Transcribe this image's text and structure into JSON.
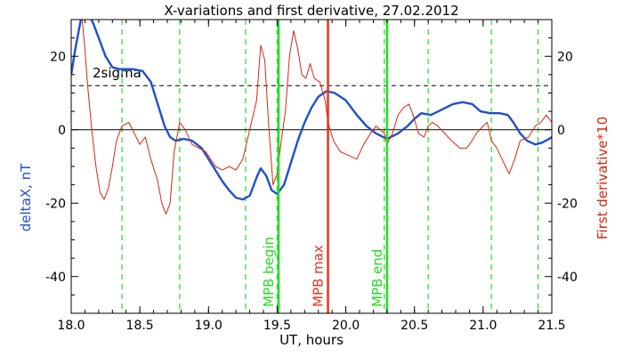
{
  "chart_data": {
    "type": "line",
    "title": "X-variations and first derivative, 27.02.2012",
    "xlabel": "UT, hours",
    "ylabel_left": "deltaX, nT",
    "ylabel_right": "First derivative*10",
    "xlim": [
      18.0,
      21.5
    ],
    "ylim": [
      -50,
      30
    ],
    "x_ticks": [
      "18.0",
      "18.5",
      "19.0",
      "19.5",
      "20.0",
      "20.5",
      "21.0",
      "21.5"
    ],
    "y_ticks": [
      "20",
      "0",
      "-20",
      "-40"
    ],
    "x_tick_values": [
      18.0,
      18.5,
      19.0,
      19.5,
      20.0,
      20.5,
      21.0,
      21.5
    ],
    "y_tick_values": [
      20,
      0,
      -20,
      -40
    ],
    "two_sigma_label": "2sigma",
    "two_sigma_level": 12,
    "zero_level": 0,
    "dashed_green_times": [
      18.37,
      18.79,
      19.27,
      19.5,
      20.28,
      20.6,
      21.06,
      21.4
    ],
    "markers": [
      {
        "label": "MPB begin",
        "x": 19.51,
        "color": "#22dd22"
      },
      {
        "label": "MPB max",
        "x": 19.87,
        "color": "#e8341c"
      },
      {
        "label": "MPB end",
        "x": 20.3,
        "color": "#22dd22"
      }
    ],
    "series": [
      {
        "color": "#1f4fcc",
        "axis": "left",
        "points": [
          [
            18.0,
            15
          ],
          [
            18.03,
            22
          ],
          [
            18.06,
            28
          ],
          [
            18.08,
            32
          ],
          [
            18.12,
            32
          ],
          [
            18.16,
            29
          ],
          [
            18.2,
            25
          ],
          [
            18.25,
            20
          ],
          [
            18.3,
            17
          ],
          [
            18.35,
            16.5
          ],
          [
            18.45,
            16.5
          ],
          [
            18.52,
            16
          ],
          [
            18.58,
            13
          ],
          [
            18.63,
            7
          ],
          [
            18.68,
            1
          ],
          [
            18.72,
            -2
          ],
          [
            18.76,
            -3
          ],
          [
            18.82,
            -2.5
          ],
          [
            18.88,
            -3
          ],
          [
            18.95,
            -5
          ],
          [
            19.0,
            -8
          ],
          [
            19.05,
            -11
          ],
          [
            19.1,
            -14
          ],
          [
            19.15,
            -16.5
          ],
          [
            19.2,
            -18.5
          ],
          [
            19.25,
            -19
          ],
          [
            19.3,
            -18
          ],
          [
            19.35,
            -13
          ],
          [
            19.38,
            -10.5
          ],
          [
            19.42,
            -12.5
          ],
          [
            19.46,
            -16.5
          ],
          [
            19.5,
            -17.5
          ],
          [
            19.55,
            -15
          ],
          [
            19.6,
            -9
          ],
          [
            19.65,
            -3
          ],
          [
            19.7,
            2
          ],
          [
            19.75,
            6
          ],
          [
            19.8,
            9
          ],
          [
            19.86,
            10.5
          ],
          [
            19.92,
            10
          ],
          [
            20.0,
            8
          ],
          [
            20.08,
            4
          ],
          [
            20.15,
            1
          ],
          [
            20.22,
            -1
          ],
          [
            20.3,
            -2.5
          ],
          [
            20.38,
            -1
          ],
          [
            20.45,
            1
          ],
          [
            20.5,
            3
          ],
          [
            20.55,
            4.5
          ],
          [
            20.62,
            4
          ],
          [
            20.7,
            5.5
          ],
          [
            20.78,
            7
          ],
          [
            20.85,
            7.5
          ],
          [
            20.92,
            7
          ],
          [
            20.98,
            5
          ],
          [
            21.05,
            4.5
          ],
          [
            21.12,
            4.5
          ],
          [
            21.18,
            4
          ],
          [
            21.22,
            2
          ],
          [
            21.27,
            -1
          ],
          [
            21.32,
            -3
          ],
          [
            21.38,
            -4
          ],
          [
            21.43,
            -3.5
          ],
          [
            21.48,
            -2.5
          ],
          [
            21.5,
            -2
          ]
        ]
      },
      {
        "color": "#d42810",
        "axis": "right",
        "points": [
          [
            18.08,
            30
          ],
          [
            18.1,
            22
          ],
          [
            18.12,
            12
          ],
          [
            18.15,
            0
          ],
          [
            18.18,
            -10
          ],
          [
            18.21,
            -17
          ],
          [
            18.24,
            -19
          ],
          [
            18.27,
            -16
          ],
          [
            18.3,
            -10
          ],
          [
            18.33,
            -3
          ],
          [
            18.37,
            1
          ],
          [
            18.42,
            2
          ],
          [
            18.46,
            -1
          ],
          [
            18.5,
            -4
          ],
          [
            18.54,
            -2
          ],
          [
            18.58,
            -8
          ],
          [
            18.63,
            -14
          ],
          [
            18.66,
            -20
          ],
          [
            18.69,
            -23
          ],
          [
            18.72,
            -20
          ],
          [
            18.75,
            -6
          ],
          [
            18.79,
            2
          ],
          [
            18.83,
            0
          ],
          [
            18.88,
            -4
          ],
          [
            18.93,
            -5
          ],
          [
            18.98,
            -6
          ],
          [
            19.05,
            -10
          ],
          [
            19.1,
            -11
          ],
          [
            19.15,
            -10
          ],
          [
            19.2,
            -11
          ],
          [
            19.25,
            -8
          ],
          [
            19.3,
            0
          ],
          [
            19.35,
            8
          ],
          [
            19.38,
            23
          ],
          [
            19.41,
            19
          ],
          [
            19.44,
            0
          ],
          [
            19.47,
            -15
          ],
          [
            19.5,
            -12
          ],
          [
            19.53,
            -3
          ],
          [
            19.56,
            5
          ],
          [
            19.59,
            20
          ],
          [
            19.62,
            27
          ],
          [
            19.65,
            22
          ],
          [
            19.68,
            15
          ],
          [
            19.71,
            14
          ],
          [
            19.74,
            18
          ],
          [
            19.77,
            14
          ],
          [
            19.81,
            13
          ],
          [
            19.85,
            8
          ],
          [
            19.87,
            2
          ],
          [
            19.91,
            -3
          ],
          [
            19.96,
            -6
          ],
          [
            20.02,
            -7
          ],
          [
            20.08,
            -8
          ],
          [
            20.13,
            -4
          ],
          [
            20.18,
            -1
          ],
          [
            20.22,
            1
          ],
          [
            20.28,
            -1
          ],
          [
            20.3,
            -4
          ],
          [
            20.34,
            -1
          ],
          [
            20.38,
            4
          ],
          [
            20.42,
            6
          ],
          [
            20.46,
            7
          ],
          [
            20.49,
            4
          ],
          [
            20.53,
            -1
          ],
          [
            20.57,
            -2
          ],
          [
            20.6,
            1
          ],
          [
            20.63,
            2
          ],
          [
            20.67,
            1
          ],
          [
            20.72,
            -1
          ],
          [
            20.77,
            -3
          ],
          [
            20.83,
            -5
          ],
          [
            20.88,
            -5
          ],
          [
            20.92,
            -3
          ],
          [
            20.95,
            -1
          ],
          [
            21.0,
            1
          ],
          [
            21.03,
            2
          ],
          [
            21.06,
            -3
          ],
          [
            21.1,
            -5
          ],
          [
            21.15,
            -9
          ],
          [
            21.19,
            -12
          ],
          [
            21.23,
            -8
          ],
          [
            21.27,
            -3
          ],
          [
            21.33,
            -2
          ],
          [
            21.38,
            1
          ],
          [
            21.42,
            2
          ],
          [
            21.46,
            4
          ],
          [
            21.5,
            2
          ]
        ]
      }
    ]
  }
}
